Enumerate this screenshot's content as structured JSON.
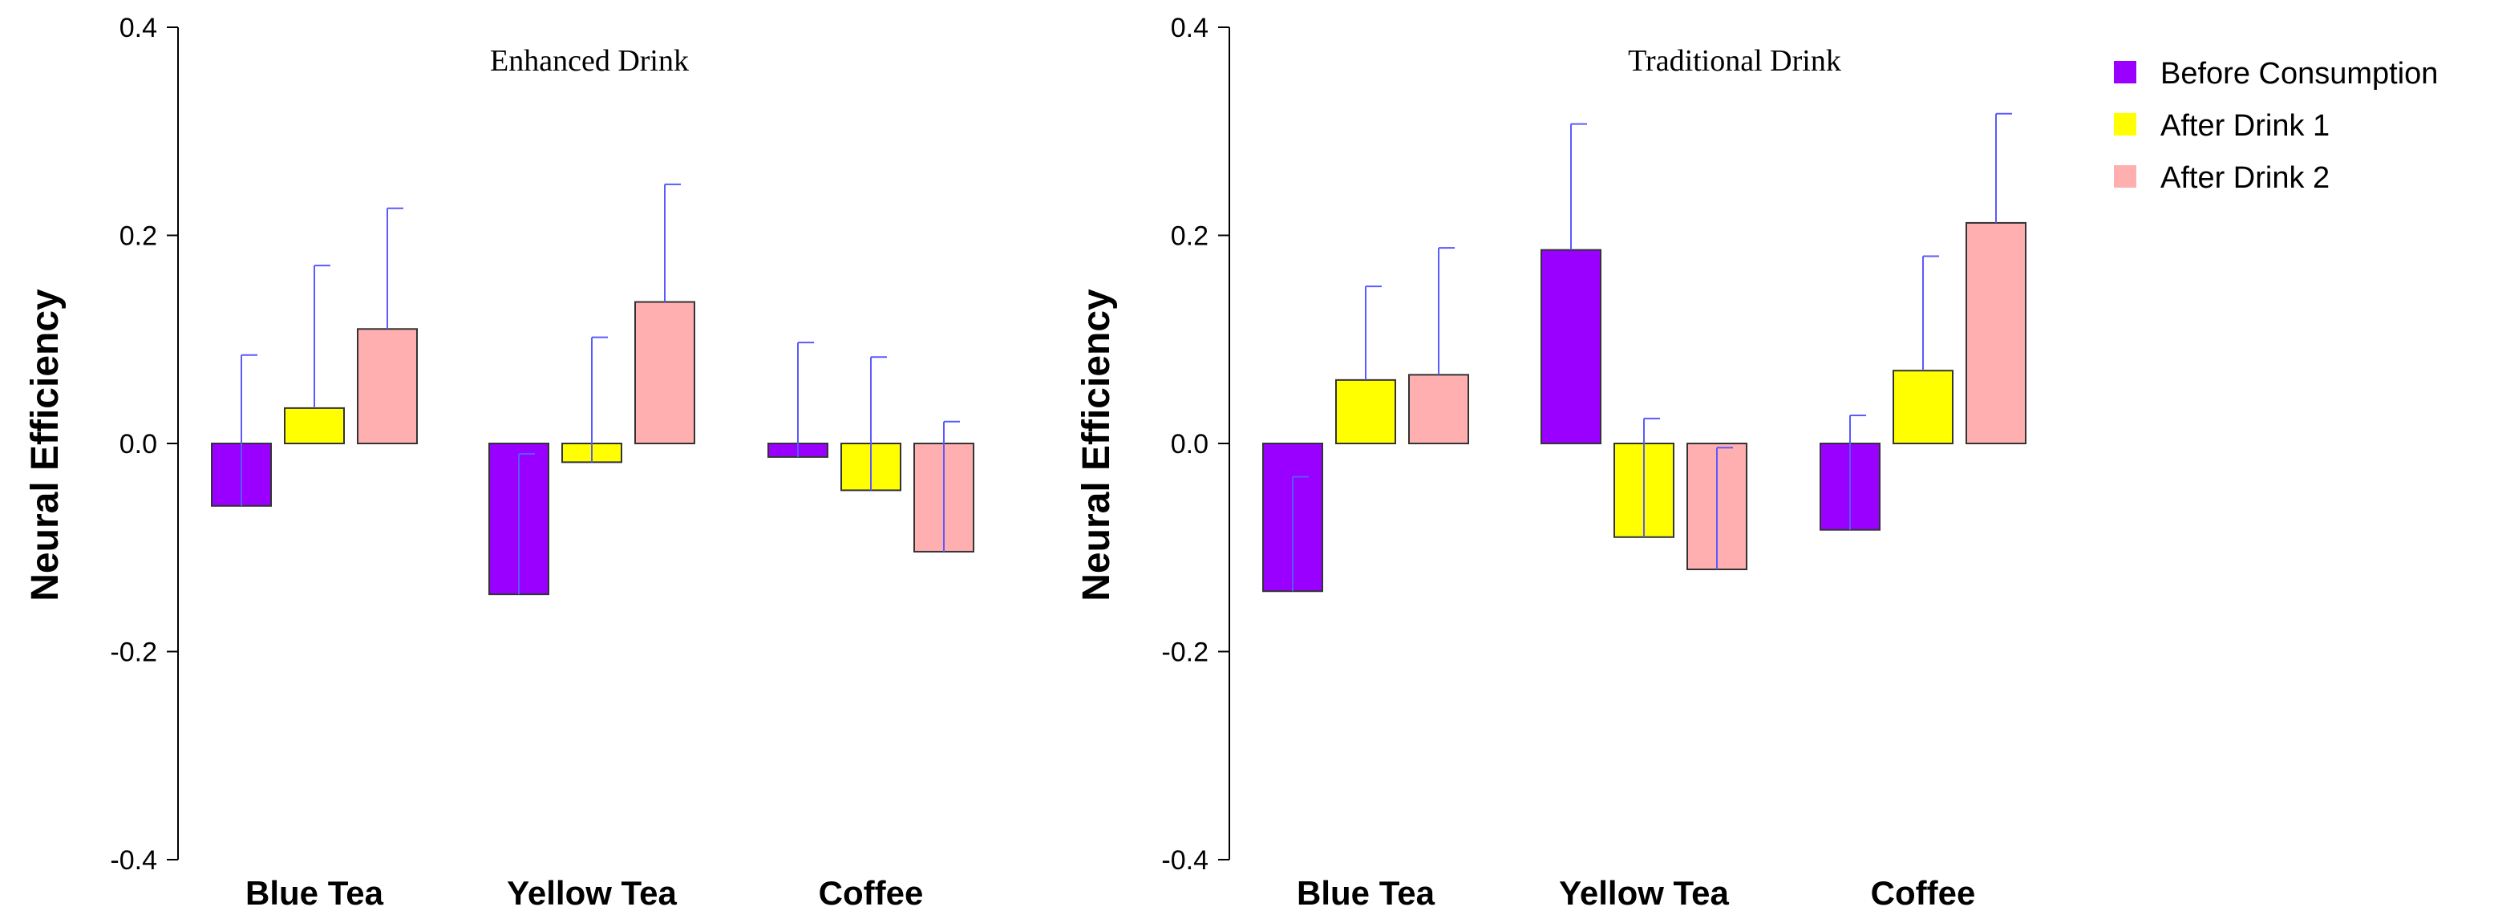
{
  "chart_data": [
    {
      "type": "bar",
      "title": "Enhanced Drink",
      "ylabel": "Neural Efficiency",
      "xlabel": "",
      "ylim": [
        -0.4,
        0.4
      ],
      "yticks": [
        "-0.4",
        "-0.2",
        "0.0",
        "0.2",
        "0.4"
      ],
      "categories": [
        "Blue Tea",
        "Yellow Tea",
        "Coffee"
      ],
      "series": [
        {
          "name": "Before Consumption",
          "values": [
            -0.06,
            -0.145,
            -0.013
          ],
          "errors": [
            0.145,
            0.135,
            0.11
          ]
        },
        {
          "name": "After Drink 1",
          "values": [
            0.034,
            -0.018,
            -0.045
          ],
          "errors": [
            0.137,
            0.12,
            0.128
          ]
        },
        {
          "name": "After Drink 2",
          "values": [
            0.11,
            0.136,
            -0.104
          ],
          "errors": [
            0.116,
            0.113,
            0.125
          ]
        }
      ]
    },
    {
      "type": "bar",
      "title": "Traditional Drink",
      "ylabel": "Neural Efficiency",
      "xlabel": "",
      "ylim": [
        -0.4,
        0.4
      ],
      "yticks": [
        "-0.4",
        "-0.2",
        "0.0",
        "0.2",
        "0.4"
      ],
      "categories": [
        "Blue Tea",
        "Yellow Tea",
        "Coffee"
      ],
      "series": [
        {
          "name": "Before Consumption",
          "values": [
            -0.142,
            0.186,
            -0.083
          ],
          "errors": [
            0.11,
            0.121,
            0.11
          ]
        },
        {
          "name": "After Drink 1",
          "values": [
            0.061,
            -0.09,
            0.07
          ],
          "errors": [
            0.09,
            0.114,
            0.11
          ]
        },
        {
          "name": "After Drink 2",
          "values": [
            0.066,
            -0.121,
            0.212
          ],
          "errors": [
            0.122,
            0.117,
            0.105
          ]
        }
      ]
    }
  ],
  "legend": {
    "position": "top-right",
    "items": [
      {
        "label": "Before Consumption",
        "color": "#9900ff"
      },
      {
        "label": "After Drink 1",
        "color": "#ffff00"
      },
      {
        "label": "After Drink 2",
        "color": "#ffafaf"
      }
    ]
  },
  "colors": {
    "series": [
      "#9900ff",
      "#ffff00",
      "#ffafaf"
    ],
    "error_bar": "#5a5aff",
    "axis": "#000000",
    "bar_edge": "#333333"
  }
}
